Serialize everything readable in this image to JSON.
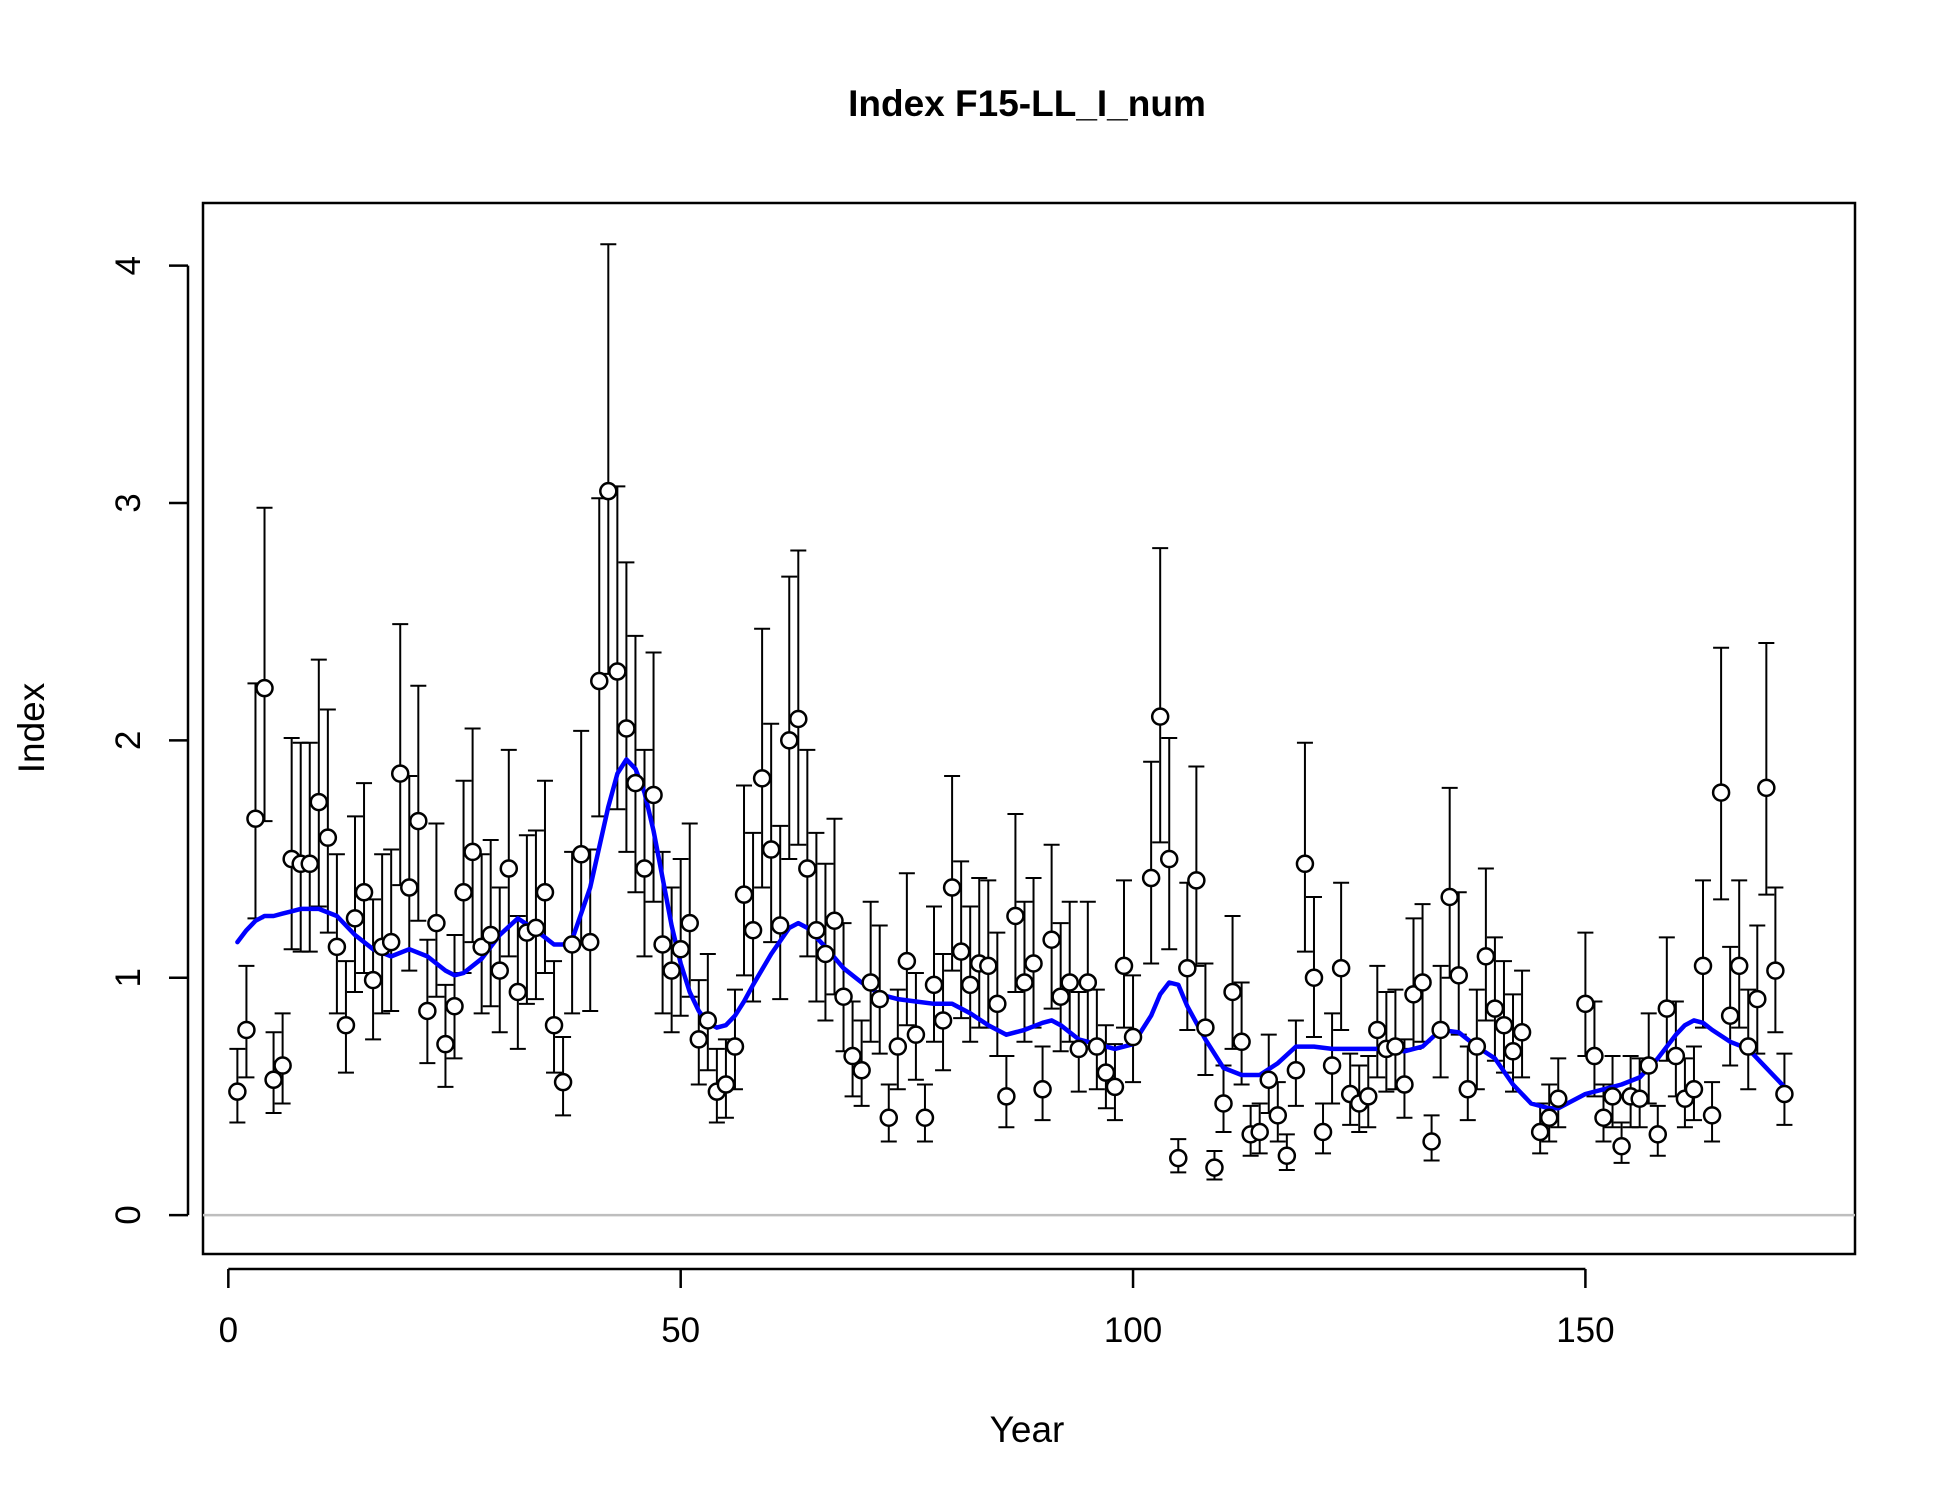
{
  "chart_data": {
    "type": "scatter",
    "title": "Index F15-LL_I_num",
    "xlabel": "Year",
    "ylabel": "Index",
    "xlim": [
      -2.8,
      179.8
    ],
    "ylim": [
      -0.164,
      4.264
    ],
    "x_ticks": [
      0,
      50,
      100,
      150
    ],
    "y_ticks": [
      0,
      1,
      2,
      3,
      4
    ],
    "grid": false,
    "legend": "none",
    "reference_line": {
      "y": 0,
      "color": "#bebebe"
    },
    "colors": {
      "points": "#000000",
      "point_fill": "#ffffff",
      "error_bars": "#000000",
      "fit_line": "#0000ff"
    },
    "series": [
      {
        "kind": "observed",
        "x": [
          1,
          2,
          3,
          4,
          5,
          6,
          7,
          8,
          9,
          10,
          11,
          12,
          13,
          14,
          15,
          16,
          17,
          18,
          19,
          20,
          21,
          22,
          23,
          24,
          25,
          26,
          27,
          28,
          29,
          30,
          31,
          32,
          33,
          34,
          35,
          36,
          37,
          38,
          39,
          40,
          41,
          42,
          43,
          44,
          45,
          46,
          47,
          48,
          49,
          50,
          51,
          52,
          53,
          54,
          55,
          56,
          57,
          58,
          59,
          60,
          61,
          62,
          63,
          64,
          65,
          66,
          67,
          68,
          69,
          70,
          71,
          72,
          73,
          74,
          75,
          76,
          77,
          78,
          79,
          80,
          81,
          82,
          83,
          84,
          85,
          86,
          87,
          88,
          89,
          90,
          91,
          92,
          93,
          94,
          95,
          96,
          97,
          98,
          99,
          100,
          102,
          103,
          104,
          105,
          106,
          107,
          108,
          109,
          110,
          111,
          112,
          113,
          114,
          115,
          116,
          117,
          118,
          119,
          120,
          121,
          122,
          123,
          124,
          125,
          126,
          127,
          128,
          129,
          130,
          131,
          132,
          133,
          134,
          135,
          136,
          137,
          138,
          139,
          140,
          141,
          142,
          143,
          145,
          146,
          147,
          150,
          151,
          152,
          153,
          154,
          155,
          156,
          157,
          158,
          159,
          160,
          161,
          162,
          163,
          164,
          165,
          166,
          167,
          168,
          169,
          170,
          171,
          172
        ],
        "y": [
          0.52,
          0.78,
          1.67,
          2.22,
          0.57,
          0.63,
          1.5,
          1.48,
          1.48,
          1.74,
          1.59,
          1.13,
          0.8,
          1.25,
          1.36,
          0.99,
          1.13,
          1.15,
          1.86,
          1.38,
          1.66,
          0.86,
          1.23,
          0.72,
          0.88,
          1.36,
          1.53,
          1.13,
          1.18,
          1.03,
          1.46,
          0.94,
          1.19,
          1.21,
          1.36,
          0.8,
          0.56,
          1.14,
          1.52,
          1.15,
          2.25,
          3.05,
          2.29,
          2.05,
          1.82,
          1.46,
          1.77,
          1.14,
          1.03,
          1.12,
          1.23,
          0.74,
          0.82,
          0.52,
          0.55,
          0.71,
          1.35,
          1.2,
          1.84,
          1.54,
          1.22,
          2.0,
          2.09,
          1.46,
          1.2,
          1.1,
          1.24,
          0.92,
          0.67,
          0.61,
          0.98,
          0.91,
          0.41,
          0.71,
          1.07,
          0.76,
          0.41,
          0.97,
          0.82,
          1.38,
          1.11,
          0.97,
          1.06,
          1.05,
          0.89,
          0.5,
          1.26,
          0.98,
          1.06,
          0.53,
          1.16,
          0.92,
          0.98,
          0.7,
          0.98,
          0.71,
          0.6,
          0.54,
          1.05,
          0.75,
          1.42,
          2.1,
          1.5,
          0.24,
          1.04,
          1.41,
          0.79,
          0.2,
          0.47,
          0.94,
          0.73,
          0.34,
          0.35,
          0.57,
          0.42,
          0.25,
          0.61,
          1.48,
          1.0,
          0.35,
          0.63,
          1.04,
          0.51,
          0.47,
          0.5,
          0.78,
          0.7,
          0.71,
          0.55,
          0.93,
          0.98,
          0.31,
          0.78,
          1.34,
          1.01,
          0.53,
          0.71,
          1.09,
          0.87,
          0.8,
          0.69,
          0.77,
          0.35,
          0.41,
          0.49,
          0.89,
          0.67,
          0.41,
          0.5,
          0.29,
          0.5,
          0.49,
          0.63,
          0.34,
          0.87,
          0.67,
          0.49,
          0.53,
          1.05,
          0.42,
          1.78,
          0.84,
          1.05,
          0.71,
          0.91,
          1.8,
          1.03,
          0.51
        ],
        "y_lower": [
          0.39,
          0.58,
          1.25,
          1.66,
          0.43,
          0.47,
          1.12,
          1.11,
          1.11,
          1.3,
          1.19,
          0.85,
          0.6,
          0.94,
          1.02,
          0.74,
          0.85,
          0.86,
          1.39,
          1.03,
          1.24,
          0.64,
          0.92,
          0.54,
          0.66,
          1.02,
          1.15,
          0.85,
          0.88,
          0.77,
          1.09,
          0.7,
          0.89,
          0.91,
          1.02,
          0.6,
          0.42,
          0.85,
          1.14,
          0.86,
          1.68,
          2.28,
          1.71,
          1.53,
          1.36,
          1.09,
          1.32,
          0.85,
          0.77,
          0.84,
          0.92,
          0.55,
          0.61,
          0.39,
          0.41,
          0.53,
          1.01,
          0.9,
          1.38,
          1.15,
          0.91,
          1.5,
          1.56,
          1.09,
          0.9,
          0.82,
          0.93,
          0.69,
          0.5,
          0.46,
          0.73,
          0.68,
          0.31,
          0.53,
          0.8,
          0.57,
          0.31,
          0.73,
          0.61,
          1.03,
          0.83,
          0.73,
          0.79,
          0.79,
          0.67,
          0.37,
          0.94,
          0.73,
          0.79,
          0.4,
          0.87,
          0.69,
          0.73,
          0.52,
          0.73,
          0.53,
          0.45,
          0.4,
          0.79,
          0.56,
          1.06,
          1.57,
          1.12,
          0.18,
          0.78,
          1.05,
          0.59,
          0.15,
          0.35,
          0.7,
          0.55,
          0.25,
          0.26,
          0.43,
          0.31,
          0.19,
          0.46,
          1.11,
          0.75,
          0.26,
          0.47,
          0.78,
          0.38,
          0.35,
          0.37,
          0.58,
          0.52,
          0.53,
          0.41,
          0.7,
          0.73,
          0.23,
          0.58,
          1.0,
          0.76,
          0.4,
          0.53,
          0.82,
          0.65,
          0.6,
          0.52,
          0.58,
          0.26,
          0.31,
          0.37,
          0.67,
          0.5,
          0.31,
          0.37,
          0.22,
          0.37,
          0.37,
          0.47,
          0.25,
          0.65,
          0.5,
          0.37,
          0.4,
          0.79,
          0.31,
          1.33,
          0.63,
          0.79,
          0.53,
          0.68,
          1.35,
          0.77,
          0.38
        ],
        "y_upper": [
          0.7,
          1.05,
          2.24,
          2.98,
          0.77,
          0.85,
          2.01,
          1.99,
          1.99,
          2.34,
          2.13,
          1.52,
          1.07,
          1.68,
          1.82,
          1.33,
          1.52,
          1.54,
          2.49,
          1.85,
          2.23,
          1.16,
          1.65,
          0.97,
          1.18,
          1.83,
          2.05,
          1.52,
          1.58,
          1.38,
          1.96,
          1.26,
          1.6,
          1.62,
          1.83,
          1.07,
          0.75,
          1.53,
          2.04,
          1.54,
          3.02,
          4.09,
          3.07,
          2.75,
          2.44,
          1.96,
          2.37,
          1.53,
          1.38,
          1.5,
          1.65,
          0.99,
          1.1,
          0.7,
          0.74,
          0.95,
          1.81,
          1.61,
          2.47,
          2.07,
          1.64,
          2.69,
          2.8,
          1.96,
          1.61,
          1.48,
          1.67,
          1.23,
          0.9,
          0.82,
          1.32,
          1.22,
          0.55,
          0.95,
          1.44,
          1.02,
          0.55,
          1.3,
          1.1,
          1.85,
          1.49,
          1.3,
          1.42,
          1.41,
          1.19,
          0.67,
          1.69,
          1.32,
          1.42,
          0.71,
          1.56,
          1.23,
          1.32,
          0.94,
          1.32,
          0.95,
          0.8,
          0.72,
          1.41,
          1.01,
          1.91,
          2.81,
          2.01,
          0.32,
          1.4,
          1.89,
          1.06,
          0.27,
          0.63,
          1.26,
          0.98,
          0.46,
          0.47,
          0.76,
          0.56,
          0.34,
          0.82,
          1.99,
          1.34,
          0.47,
          0.85,
          1.4,
          0.68,
          0.63,
          0.67,
          1.05,
          0.94,
          0.95,
          0.74,
          1.25,
          1.31,
          0.42,
          1.05,
          1.8,
          1.36,
          0.71,
          0.95,
          1.46,
          1.17,
          1.07,
          0.93,
          1.03,
          0.47,
          0.55,
          0.66,
          1.19,
          0.9,
          0.55,
          0.67,
          0.39,
          0.67,
          0.66,
          0.85,
          0.46,
          1.17,
          0.9,
          0.66,
          0.71,
          1.41,
          0.56,
          2.39,
          1.13,
          1.41,
          0.95,
          1.22,
          2.41,
          1.38,
          0.68
        ]
      },
      {
        "kind": "fitted",
        "x": [
          1,
          2,
          3,
          4,
          5,
          6,
          7,
          8,
          9,
          10,
          12,
          14,
          16,
          18,
          20,
          22,
          24,
          25,
          26,
          28,
          30,
          32,
          34,
          36,
          37,
          38,
          40,
          42,
          43,
          44,
          45,
          46,
          47,
          48,
          49,
          50,
          51,
          52,
          53,
          54,
          55,
          56,
          57,
          58,
          60,
          62,
          63,
          64,
          66,
          68,
          70,
          72,
          74,
          76,
          78,
          80,
          82,
          84,
          86,
          88,
          90,
          91,
          92,
          94,
          96,
          98,
          100,
          102,
          103,
          104,
          105,
          106,
          108,
          110,
          112,
          114,
          116,
          118,
          120,
          122,
          124,
          126,
          128,
          130,
          132,
          134,
          136,
          138,
          140,
          142,
          144,
          146,
          147,
          148,
          150,
          152,
          154,
          156,
          158,
          160,
          161,
          162,
          163,
          164,
          166,
          168,
          170,
          172
        ],
        "y": [
          1.15,
          1.2,
          1.24,
          1.26,
          1.26,
          1.27,
          1.28,
          1.29,
          1.29,
          1.29,
          1.26,
          1.18,
          1.12,
          1.09,
          1.12,
          1.09,
          1.03,
          1.01,
          1.02,
          1.08,
          1.18,
          1.25,
          1.2,
          1.14,
          1.14,
          1.16,
          1.38,
          1.72,
          1.86,
          1.92,
          1.88,
          1.78,
          1.62,
          1.42,
          1.22,
          1.06,
          0.94,
          0.86,
          0.81,
          0.79,
          0.8,
          0.84,
          0.9,
          0.97,
          1.1,
          1.21,
          1.23,
          1.21,
          1.13,
          1.04,
          0.98,
          0.93,
          0.91,
          0.9,
          0.89,
          0.89,
          0.85,
          0.8,
          0.76,
          0.78,
          0.81,
          0.82,
          0.8,
          0.74,
          0.72,
          0.7,
          0.72,
          0.84,
          0.93,
          0.98,
          0.97,
          0.88,
          0.74,
          0.62,
          0.59,
          0.59,
          0.64,
          0.71,
          0.71,
          0.7,
          0.7,
          0.7,
          0.7,
          0.69,
          0.71,
          0.78,
          0.77,
          0.71,
          0.66,
          0.55,
          0.47,
          0.45,
          0.45,
          0.47,
          0.51,
          0.53,
          0.55,
          0.58,
          0.66,
          0.76,
          0.8,
          0.82,
          0.81,
          0.78,
          0.73,
          0.7,
          0.62,
          0.54
        ]
      }
    ]
  }
}
